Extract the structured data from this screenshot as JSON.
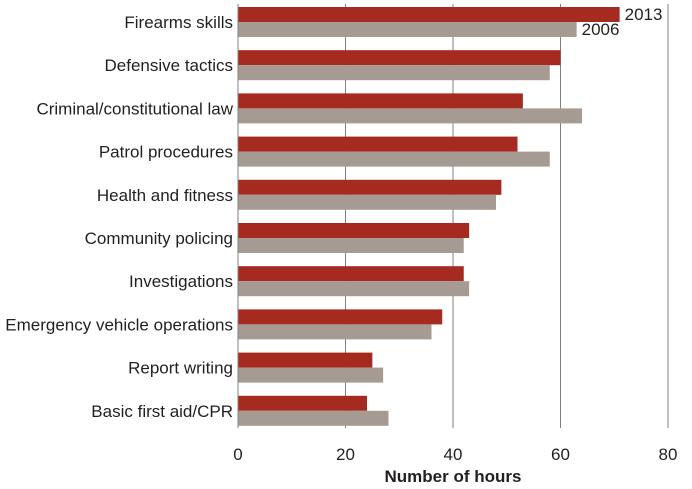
{
  "chart_data": {
    "type": "bar",
    "orientation": "horizontal",
    "categories": [
      "Firearms skills",
      "Defensive tactics",
      "Criminal/constitutional law",
      "Patrol procedures",
      "Health and fitness",
      "Community policing",
      "Investigations",
      "Emergency vehicle operations",
      "Report writing",
      "Basic first aid/CPR"
    ],
    "series": [
      {
        "name": "2013",
        "color": "#a52a1f",
        "values": [
          71,
          60,
          53,
          52,
          49,
          43,
          42,
          38,
          25,
          24
        ]
      },
      {
        "name": "2006",
        "color": "#a59b92",
        "values": [
          63,
          58,
          64,
          58,
          48,
          42,
          43,
          36,
          27,
          28
        ]
      }
    ],
    "xlabel": "Number of hours",
    "xlim": [
      0,
      80
    ],
    "xticks": [
      "0",
      "20",
      "40",
      "60",
      "80"
    ],
    "grid": "vertical",
    "legend": "inline labels at end of first category bars"
  }
}
